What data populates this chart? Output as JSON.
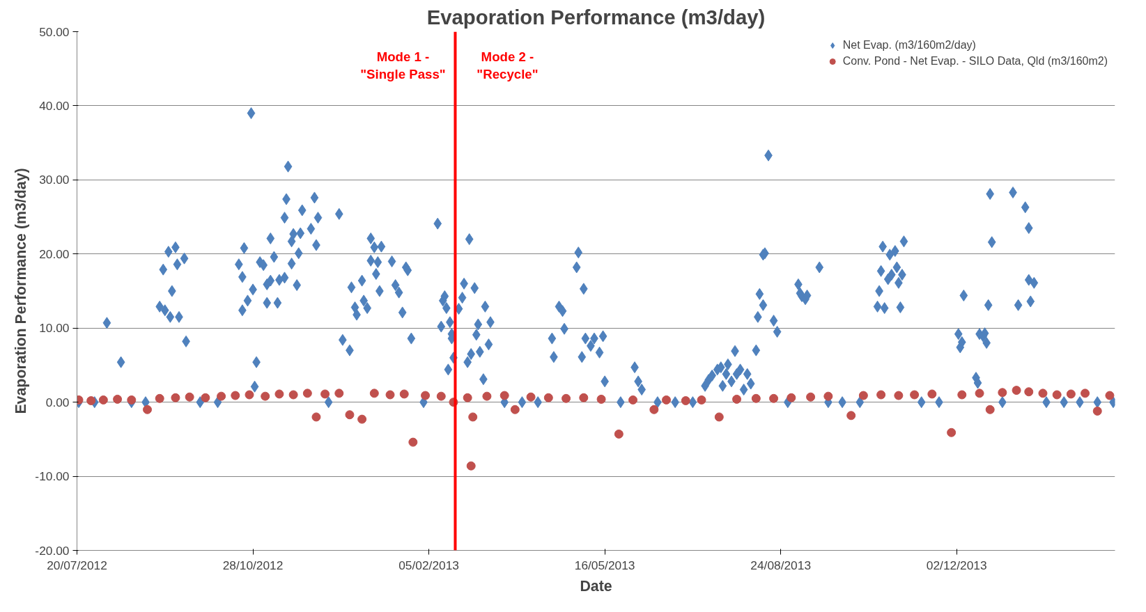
{
  "chart_data": {
    "type": "scatter",
    "title": "Evaporation Performance (m3/day)",
    "xlabel": "Date",
    "ylabel": "Evaporation Performance (m3/day)",
    "xlim": [
      "2012-07-20",
      "2014-03-02"
    ],
    "xticks": [
      {
        "value": "2012-07-20",
        "label": "20/07/2012"
      },
      {
        "value": "2012-10-28",
        "label": "28/10/2012"
      },
      {
        "value": "2013-02-05",
        "label": "05/02/2013"
      },
      {
        "value": "2013-05-16",
        "label": "16/05/2013"
      },
      {
        "value": "2013-08-24",
        "label": "24/08/2013"
      },
      {
        "value": "2013-12-02",
        "label": "02/12/2013"
      }
    ],
    "ylim": [
      -20,
      50
    ],
    "yticks": [
      {
        "value": -20,
        "label": "-20.00"
      },
      {
        "value": -10,
        "label": "-10.00"
      },
      {
        "value": 0,
        "label": "0.00"
      },
      {
        "value": 10,
        "label": "10.00"
      },
      {
        "value": 20,
        "label": "20.00"
      },
      {
        "value": 30,
        "label": "30.00"
      },
      {
        "value": 40,
        "label": "40.00"
      },
      {
        "value": 50,
        "label": "50.00"
      }
    ],
    "grid": "y",
    "legend": "top right",
    "ref_lines": [
      {
        "axis": "x",
        "value": "2013-02-20",
        "label": null,
        "color": "#ff0000"
      }
    ],
    "annotations": [
      "Mode 1 -\n\"Single Pass\"",
      "Mode 2 -\n\"Recycle\""
    ],
    "series": [
      {
        "name": "Net Evap. (m3/160m2/day)",
        "color": "#4f81bd",
        "marker": "diamond",
        "x": [
          "2012-07-21",
          "2012-07-30",
          "2012-08-06",
          "2012-08-14",
          "2012-08-20",
          "2012-08-28",
          "2012-09-05",
          "2012-09-08",
          "2012-09-07",
          "2012-09-10",
          "2012-09-12",
          "2012-09-11",
          "2012-09-14",
          "2012-09-15",
          "2012-09-16",
          "2012-09-19",
          "2012-09-20",
          "2012-09-28",
          "2012-10-08",
          "2012-10-20",
          "2012-10-22",
          "2012-10-23",
          "2012-10-22",
          "2012-10-25",
          "2012-10-27",
          "2012-10-28",
          "2012-10-30",
          "2012-10-29",
          "2012-11-01",
          "2012-11-03",
          "2012-11-05",
          "2012-11-05",
          "2012-11-07",
          "2012-11-07",
          "2012-11-09",
          "2012-11-11",
          "2012-11-12",
          "2012-11-15",
          "2012-11-15",
          "2012-11-16",
          "2012-11-17",
          "2012-11-19",
          "2012-11-19",
          "2012-11-20",
          "2012-11-22",
          "2012-11-23",
          "2012-11-24",
          "2012-11-25",
          "2012-11-30",
          "2012-12-02",
          "2012-12-03",
          "2012-12-04",
          "2012-12-10",
          "2012-12-16",
          "2012-12-18",
          "2012-12-22",
          "2012-12-23",
          "2012-12-25",
          "2012-12-26",
          "2012-12-29",
          "2012-12-30",
          "2013-01-01",
          "2013-01-03",
          "2013-01-03",
          "2013-01-05",
          "2013-01-06",
          "2013-01-07",
          "2013-01-08",
          "2013-01-09",
          "2013-01-15",
          "2013-01-17",
          "2013-01-19",
          "2013-01-21",
          "2013-01-23",
          "2013-01-24",
          "2013-01-26",
          "2013-02-02",
          "2013-02-10",
          "2013-02-12",
          "2013-02-13",
          "2013-02-14",
          "2013-02-15",
          "2013-02-16",
          "2013-02-17",
          "2013-02-18",
          "2013-02-18",
          "2013-02-19",
          "2013-02-22",
          "2013-02-24",
          "2013-02-25",
          "2013-02-27",
          "2013-02-28",
          "2013-03-01",
          "2013-03-03",
          "2013-03-04",
          "2013-03-05",
          "2013-03-06",
          "2013-03-08",
          "2013-03-09",
          "2013-03-11",
          "2013-03-12",
          "2013-03-20",
          "2013-03-30",
          "2013-04-08",
          "2013-04-16",
          "2013-04-17",
          "2013-04-20",
          "2013-04-22",
          "2013-04-23",
          "2013-04-30",
          "2013-05-01",
          "2013-05-03",
          "2013-05-04",
          "2013-05-05",
          "2013-05-08",
          "2013-05-10",
          "2013-05-13",
          "2013-05-15",
          "2013-05-16",
          "2013-05-25",
          "2013-06-02",
          "2013-06-04",
          "2013-06-06",
          "2013-06-15",
          "2013-06-25",
          "2013-07-05",
          "2013-07-12",
          "2013-07-14",
          "2013-07-16",
          "2013-07-19",
          "2013-07-21",
          "2013-07-22",
          "2013-07-24",
          "2013-07-25",
          "2013-07-27",
          "2013-07-29",
          "2013-07-30",
          "2013-08-01",
          "2013-08-03",
          "2013-08-05",
          "2013-08-07",
          "2013-08-10",
          "2013-08-11",
          "2013-08-12",
          "2013-08-14",
          "2013-08-14",
          "2013-08-15",
          "2013-08-17",
          "2013-08-20",
          "2013-08-22",
          "2013-08-28",
          "2013-09-03",
          "2013-09-04",
          "2013-09-05",
          "2013-09-07",
          "2013-09-08",
          "2013-09-15",
          "2013-09-20",
          "2013-09-28",
          "2013-10-08",
          "2013-10-18",
          "2013-10-19",
          "2013-10-20",
          "2013-10-21",
          "2013-10-22",
          "2013-10-24",
          "2013-10-25",
          "2013-10-26",
          "2013-10-28",
          "2013-10-29",
          "2013-10-30",
          "2013-10-31",
          "2013-11-01",
          "2013-11-02",
          "2013-11-12",
          "2013-11-22",
          "2013-12-03",
          "2013-12-04",
          "2013-12-05",
          "2013-12-06",
          "2013-12-13",
          "2013-12-14",
          "2013-12-15",
          "2013-12-17",
          "2013-12-18",
          "2013-12-19",
          "2013-12-20",
          "2013-12-21",
          "2013-12-22",
          "2013-12-28",
          "2014-01-03",
          "2014-01-06",
          "2014-01-10",
          "2014-01-12",
          "2014-01-12",
          "2014-01-13",
          "2014-01-15",
          "2014-01-22",
          "2014-02-01",
          "2014-02-10",
          "2014-02-20",
          "2014-03-01"
        ],
        "values": [
          0,
          0,
          10.7,
          5.4,
          0,
          0,
          12.9,
          12.4,
          17.9,
          20.3,
          15.0,
          11.5,
          20.9,
          18.6,
          11.5,
          19.4,
          8.2,
          0,
          0,
          18.6,
          16.9,
          20.8,
          12.4,
          13.7,
          39.0,
          15.2,
          5.4,
          2.1,
          18.9,
          18.5,
          15.9,
          13.4,
          22.1,
          16.4,
          19.6,
          13.4,
          16.5,
          16.8,
          24.9,
          27.4,
          31.8,
          18.7,
          21.7,
          22.7,
          15.8,
          20.1,
          22.8,
          25.9,
          23.4,
          27.6,
          21.2,
          24.9,
          0,
          25.4,
          8.4,
          7.0,
          15.5,
          12.8,
          11.8,
          16.4,
          13.7,
          12.7,
          19.1,
          22.1,
          20.9,
          17.3,
          18.9,
          15.0,
          21.0,
          19.0,
          15.8,
          14.8,
          12.1,
          18.2,
          17.8,
          8.6,
          0,
          24.1,
          10.2,
          13.7,
          14.3,
          12.7,
          4.4,
          10.8,
          9.2,
          8.6,
          6.0,
          12.6,
          14.1,
          16.0,
          5.4,
          22.0,
          6.5,
          15.4,
          9.1,
          10.5,
          6.8,
          3.1,
          12.9,
          7.8,
          10.8,
          0,
          0,
          0,
          8.6,
          6.1,
          12.9,
          12.3,
          9.9,
          18.2,
          20.2,
          6.1,
          15.3,
          8.6,
          7.6,
          8.6,
          6.7,
          8.9,
          2.8,
          0,
          4.7,
          2.8,
          1.7,
          0,
          0,
          0,
          2.2,
          3.0,
          3.6,
          4.4,
          4.7,
          2.2,
          3.8,
          5.1,
          2.8,
          6.9,
          3.8,
          4.4,
          1.7,
          3.8,
          2.5,
          7.0,
          11.5,
          14.6,
          19.9,
          13.1,
          20.1,
          33.3,
          11.0,
          9.5,
          0,
          15.9,
          14.7,
          14.3,
          13.9,
          14.4,
          18.2,
          0,
          0,
          0,
          12.9,
          15.0,
          17.7,
          21.0,
          12.7,
          16.6,
          19.9,
          17.2,
          20.4,
          18.2,
          16.1,
          12.8,
          17.2,
          21.7,
          0,
          0,
          9.2,
          7.4,
          8.1,
          14.4,
          3.3,
          2.6,
          9.2,
          8.9,
          9.3,
          8.0,
          13.1,
          28.1,
          21.6,
          0,
          28.3,
          13.1,
          26.3,
          23.5,
          16.5,
          13.6,
          16.1,
          0,
          0,
          0,
          0,
          0
        ]
      },
      {
        "name": "Conv. Pond - Net Evap. - SILO Data, Qld (m3/160m2)",
        "color": "#c0504d",
        "marker": "circle",
        "x": [
          "2012-07-21",
          "2012-07-28",
          "2012-08-04",
          "2012-08-12",
          "2012-08-20",
          "2012-08-29",
          "2012-09-05",
          "2012-09-14",
          "2012-09-22",
          "2012-10-01",
          "2012-10-10",
          "2012-10-18",
          "2012-10-26",
          "2012-11-04",
          "2012-11-12",
          "2012-11-20",
          "2012-11-28",
          "2012-12-03",
          "2012-12-08",
          "2012-12-16",
          "2012-12-22",
          "2012-12-29",
          "2013-01-05",
          "2013-01-14",
          "2013-01-22",
          "2013-01-27",
          "2013-02-03",
          "2013-02-12",
          "2013-02-19",
          "2013-02-27",
          "2013-03-01",
          "2013-03-02",
          "2013-03-10",
          "2013-03-20",
          "2013-03-26",
          "2013-04-04",
          "2013-04-14",
          "2013-04-24",
          "2013-05-04",
          "2013-05-14",
          "2013-05-24",
          "2013-06-01",
          "2013-06-13",
          "2013-06-20",
          "2013-07-01",
          "2013-07-10",
          "2013-07-20",
          "2013-07-30",
          "2013-08-10",
          "2013-08-20",
          "2013-08-30",
          "2013-09-10",
          "2013-09-20",
          "2013-10-03",
          "2013-10-10",
          "2013-10-20",
          "2013-10-30",
          "2013-11-08",
          "2013-11-18",
          "2013-11-29",
          "2013-12-05",
          "2013-12-15",
          "2013-12-21",
          "2013-12-28",
          "2014-01-05",
          "2014-01-12",
          "2014-01-20",
          "2014-01-28",
          "2014-02-05",
          "2014-02-13",
          "2014-02-20",
          "2014-02-27"
        ],
        "values": [
          0.3,
          0.2,
          0.3,
          0.4,
          0.3,
          -1.0,
          0.5,
          0.6,
          0.7,
          0.6,
          0.8,
          0.9,
          1.0,
          0.8,
          1.1,
          1.0,
          1.2,
          -2.0,
          1.1,
          1.2,
          -1.7,
          -2.3,
          1.2,
          1.0,
          1.1,
          -5.4,
          0.9,
          0.8,
          0.0,
          0.6,
          -8.6,
          -2.0,
          0.8,
          0.9,
          -1.0,
          0.7,
          0.6,
          0.5,
          0.6,
          0.4,
          -4.3,
          0.3,
          -1.0,
          0.3,
          0.2,
          0.3,
          -2.0,
          0.4,
          0.5,
          0.5,
          0.6,
          0.7,
          0.8,
          -1.8,
          0.9,
          1.0,
          0.9,
          1.0,
          1.1,
          -4.1,
          1.0,
          1.2,
          -1.0,
          1.3,
          1.6,
          1.4,
          1.2,
          1.0,
          1.1,
          1.2,
          -1.2,
          0.9
        ]
      }
    ]
  }
}
